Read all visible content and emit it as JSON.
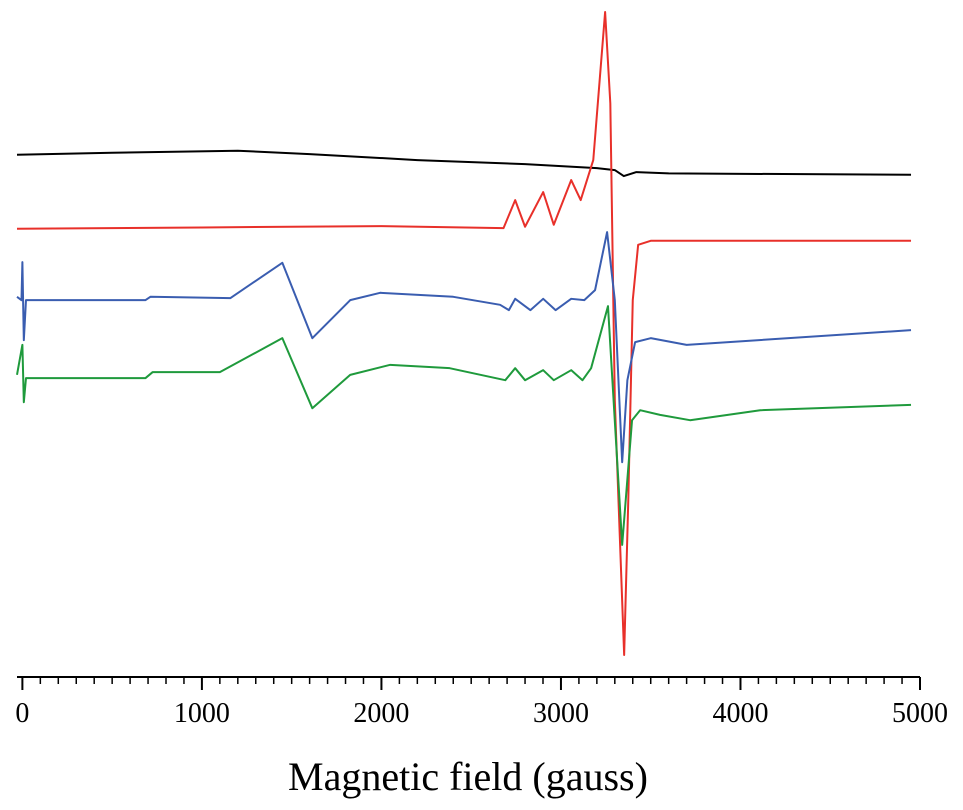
{
  "chart_data": {
    "type": "line",
    "x_label": "Magnetic field (gauss)",
    "xlim": [
      -30,
      5000
    ],
    "xticks": [
      0,
      1000,
      2000,
      3000,
      4000,
      5000
    ],
    "ylim": [
      0,
      100
    ],
    "series": [
      {
        "color": "#000000",
        "x": [
          -30,
          500,
          1200,
          1600,
          2200,
          2800,
          3200,
          3300,
          3350,
          3420,
          3600,
          4950
        ],
        "values": [
          78.3,
          78.6,
          78.9,
          78.4,
          77.5,
          76.9,
          76.3,
          76.0,
          75.1,
          75.7,
          75.5,
          75.3
        ]
      },
      {
        "color": "#e8302a",
        "x": [
          -30,
          1000,
          2000,
          2680,
          2745,
          2800,
          2901,
          2960,
          3057,
          3110,
          3180,
          3246,
          3275,
          3300,
          3352,
          3375,
          3400,
          3430,
          3500,
          4950
        ],
        "values": [
          67.2,
          67.4,
          67.6,
          67.3,
          71.5,
          67.5,
          72.7,
          67.8,
          74.5,
          71.5,
          77.5,
          99.7,
          86.0,
          41.5,
          3.3,
          26.5,
          56.5,
          64.8,
          65.4,
          65.4
        ]
      },
      {
        "color": "#3a5db0",
        "x": [
          -30,
          -5,
          0,
          8,
          20,
          100,
          685,
          713,
          1158,
          1448,
          1615,
          1826,
          1993,
          2400,
          2661,
          2710,
          2745,
          2830,
          2901,
          2970,
          3057,
          3130,
          3190,
          3257,
          3300,
          3341,
          3370,
          3413,
          3500,
          3700,
          4950
        ],
        "values": [
          57.0,
          56.5,
          62.2,
          50.5,
          56.5,
          56.5,
          56.5,
          57.0,
          56.8,
          62.1,
          50.8,
          56.5,
          57.6,
          57.0,
          55.8,
          55.0,
          56.7,
          55.0,
          56.7,
          55.0,
          56.7,
          56.5,
          58.0,
          66.7,
          56.5,
          32.2,
          44.5,
          50.2,
          50.8,
          49.8,
          52.0
        ]
      },
      {
        "color": "#1f9a3c",
        "x": [
          -30,
          0,
          8,
          20,
          685,
          725,
          1100,
          1448,
          1615,
          1826,
          2049,
          2380,
          2690,
          2745,
          2800,
          2901,
          2960,
          3057,
          3120,
          3168,
          3262,
          3341,
          3396,
          3441,
          3552,
          3719,
          4110,
          4950
        ],
        "values": [
          45.3,
          49.8,
          41.2,
          44.8,
          44.8,
          45.7,
          45.7,
          50.8,
          40.3,
          45.3,
          46.8,
          46.3,
          44.5,
          46.3,
          44.5,
          46.0,
          44.5,
          46.0,
          44.5,
          46.3,
          55.6,
          19.8,
          38.5,
          40.0,
          39.3,
          38.5,
          40.0,
          40.8
        ]
      }
    ]
  }
}
